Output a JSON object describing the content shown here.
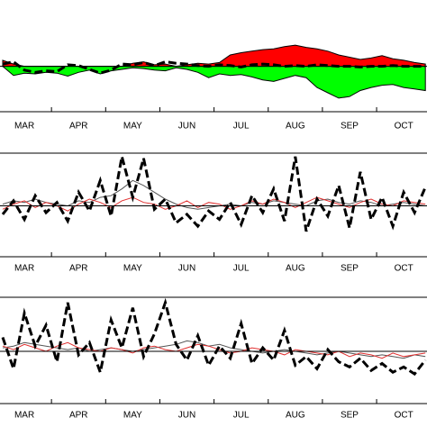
{
  "chart_data": [
    {
      "type": "area",
      "x": [
        2.6,
        2.8,
        3.0,
        3.2,
        3.4,
        3.6,
        3.8,
        4.0,
        4.2,
        4.4,
        4.6,
        4.8,
        5.0,
        5.2,
        5.4,
        5.6,
        5.8,
        6.0,
        6.2,
        6.4,
        6.6,
        6.8,
        7.0,
        7.2,
        7.4,
        7.6,
        7.8,
        8.0,
        8.2,
        8.4,
        8.6,
        8.8,
        9.0,
        9.2,
        9.4,
        9.6,
        9.8,
        10.0,
        10.2,
        10.4
      ],
      "series": [
        {
          "color": "#ff0000",
          "style": "fill",
          "values": [
            0.8,
            0.3,
            0,
            0,
            0,
            0,
            0,
            0,
            0,
            0,
            0,
            0,
            0.4,
            0.6,
            0.2,
            0.3,
            0,
            0.2,
            0.4,
            0.3,
            0.5,
            1.5,
            1.8,
            2.0,
            2.2,
            2.3,
            2.6,
            2.8,
            2.5,
            2.3,
            2.0,
            1.5,
            1.2,
            0.9,
            1.1,
            1.4,
            1.0,
            0.8,
            0.5,
            0.3
          ]
        },
        {
          "color": "#00ff00",
          "style": "fill",
          "values": [
            0,
            -1.2,
            -0.9,
            -1.0,
            -0.8,
            -0.9,
            -1.3,
            -0.8,
            -0.5,
            -1.0,
            -0.6,
            -0.4,
            -0.2,
            -0.3,
            -0.5,
            -0.6,
            -0.2,
            -0.4,
            -0.8,
            -1.5,
            -1.0,
            -1.2,
            -1.1,
            -1.4,
            -1.8,
            -2.0,
            -1.6,
            -1.2,
            -1.5,
            -2.8,
            -3.5,
            -4.2,
            -4.0,
            -3.2,
            -2.8,
            -2.5,
            -2.4,
            -2.8,
            -3.0,
            -3.2
          ]
        },
        {
          "color": "#000000",
          "style": "dashed",
          "values": [
            0.3,
            0.6,
            -0.5,
            -0.8,
            -0.6,
            -0.7,
            0.2,
            0.1,
            -0.4,
            -0.9,
            -0.5,
            0.3,
            0.2,
            0.5,
            0.1,
            0.6,
            0.4,
            0.3,
            0.1,
            0.0,
            0.2,
            0.1,
            -0.1,
            0.2,
            0.3,
            0.2,
            0.0,
            0.1,
            0.0,
            0.2,
            0.1,
            0.0,
            0.0,
            -0.1,
            0.0,
            0.0,
            0.1,
            0.0,
            0.0,
            0.0
          ]
        }
      ],
      "hline": 0,
      "xlim": [
        2.55,
        10.43
      ],
      "ylim": [
        -6,
        4
      ],
      "xticks": [
        {
          "value": 3,
          "label": "MAR"
        },
        {
          "value": 4,
          "label": "APR"
        },
        {
          "value": 5,
          "label": "MAY"
        },
        {
          "value": 6,
          "label": "JUN"
        },
        {
          "value": 7,
          "label": "JUL"
        },
        {
          "value": 8,
          "label": "AUG"
        },
        {
          "value": 9,
          "label": "SEP"
        },
        {
          "value": 10,
          "label": "OCT"
        }
      ],
      "xminorticks": [
        3.5,
        4.5,
        5.5,
        6.5,
        7.5,
        8.5,
        9.5
      ]
    },
    {
      "type": "line",
      "x": [
        2.6,
        2.8,
        3.0,
        3.2,
        3.4,
        3.6,
        3.8,
        4.0,
        4.2,
        4.4,
        4.6,
        4.8,
        5.0,
        5.2,
        5.4,
        5.6,
        5.8,
        6.0,
        6.2,
        6.4,
        6.6,
        6.8,
        7.0,
        7.2,
        7.4,
        7.6,
        7.8,
        8.0,
        8.2,
        8.4,
        8.6,
        8.8,
        9.0,
        9.2,
        9.4,
        9.6,
        9.8,
        10.0,
        10.2,
        10.4
      ],
      "series": [
        {
          "color": "#000000",
          "style": "dashed",
          "values": [
            -0.5,
            0.3,
            -0.8,
            0.6,
            -0.4,
            0.2,
            -0.9,
            0.8,
            -0.3,
            1.5,
            -0.6,
            2.9,
            0.5,
            2.8,
            -0.2,
            0.4,
            -1.0,
            -0.5,
            -1.2,
            -0.3,
            -0.8,
            0.2,
            -1.1,
            0.6,
            -0.4,
            1.0,
            -0.9,
            2.9,
            -1.5,
            0.4,
            -0.6,
            1.2,
            -1.3,
            2.0,
            -0.8,
            0.5,
            -1.2,
            0.8,
            -0.4,
            1.1
          ]
        },
        {
          "color": "#555555",
          "style": "thin",
          "values": [
            0.1,
            0.3,
            0.2,
            0.4,
            0.2,
            0.1,
            0.0,
            0.3,
            0.2,
            0.5,
            0.6,
            1.0,
            1.5,
            1.2,
            0.8,
            0.4,
            0.1,
            -0.1,
            -0.2,
            -0.1,
            0.0,
            0.1,
            0.0,
            0.2,
            0.1,
            0.3,
            0.2,
            0.1,
            0.0,
            0.3,
            0.4,
            0.2,
            0.1,
            0.3,
            0.2,
            0.0,
            0.1,
            0.2,
            0.1,
            0.0
          ]
        },
        {
          "color": "#e03030",
          "style": "thin",
          "values": [
            -0.2,
            0.1,
            0.3,
            -0.1,
            0.2,
            0.0,
            -0.3,
            0.1,
            0.4,
            0.2,
            -0.1,
            0.3,
            0.5,
            0.2,
            0.1,
            -0.2,
            0.0,
            0.3,
            -0.1,
            0.2,
            0.1,
            -0.2,
            0.0,
            0.3,
            0.1,
            0.4,
            0.2,
            -0.1,
            0.2,
            0.5,
            0.3,
            0.1,
            -0.1,
            0.2,
            0.4,
            0.1,
            0.0,
            0.3,
            0.2,
            0.1
          ]
        }
      ],
      "hline": 0,
      "xlim": [
        2.55,
        10.43
      ],
      "ylim": [
        -3,
        3
      ],
      "xticks": [
        {
          "value": 3,
          "label": "MAR"
        },
        {
          "value": 4,
          "label": "APR"
        },
        {
          "value": 5,
          "label": "MAY"
        },
        {
          "value": 6,
          "label": "JUN"
        },
        {
          "value": 7,
          "label": "JUL"
        },
        {
          "value": 8,
          "label": "AUG"
        },
        {
          "value": 9,
          "label": "SEP"
        },
        {
          "value": 10,
          "label": "OCT"
        }
      ],
      "xminorticks": [
        3.5,
        4.5,
        5.5,
        6.5,
        7.5,
        8.5,
        9.5
      ]
    },
    {
      "type": "line",
      "x": [
        2.6,
        2.8,
        3.0,
        3.2,
        3.4,
        3.6,
        3.8,
        4.0,
        4.2,
        4.4,
        4.6,
        4.8,
        5.0,
        5.2,
        5.4,
        5.6,
        5.8,
        6.0,
        6.2,
        6.4,
        6.6,
        6.8,
        7.0,
        7.2,
        7.4,
        7.6,
        7.8,
        8.0,
        8.2,
        8.4,
        8.6,
        8.8,
        9.0,
        9.2,
        9.4,
        9.6,
        9.8,
        10.0,
        10.2,
        10.4
      ],
      "series": [
        {
          "color": "#000000",
          "style": "dashed",
          "values": [
            0.8,
            -1.0,
            2.2,
            0.3,
            1.5,
            -0.6,
            2.8,
            -0.2,
            0.5,
            -1.2,
            1.8,
            0.2,
            2.5,
            -0.3,
            1.0,
            2.8,
            0.4,
            -0.5,
            0.9,
            -0.8,
            0.3,
            -0.4,
            1.6,
            -0.7,
            0.2,
            -0.5,
            1.2,
            -0.8,
            -0.3,
            -1.0,
            0.1,
            -0.6,
            -0.9,
            -0.4,
            -1.1,
            -0.7,
            -1.2,
            -0.9,
            -1.3,
            -0.5
          ]
        },
        {
          "color": "#555555",
          "style": "thin",
          "values": [
            0.2,
            0.3,
            0.5,
            0.4,
            0.3,
            0.2,
            0.1,
            0.2,
            0.0,
            0.1,
            0.2,
            0.1,
            0.0,
            0.1,
            0.2,
            0.3,
            0.4,
            0.6,
            0.5,
            0.3,
            0.4,
            0.2,
            0.1,
            0.0,
            -0.1,
            0.0,
            0.1,
            0.0,
            -0.1,
            -0.2,
            -0.1,
            0.0,
            -0.1,
            -0.2,
            -0.3,
            -0.2,
            -0.3,
            -0.4,
            -0.2,
            -0.3
          ]
        },
        {
          "color": "#e03030",
          "style": "thin",
          "values": [
            0.3,
            0.1,
            0.4,
            0.2,
            0.0,
            0.3,
            0.5,
            0.2,
            0.1,
            0.0,
            0.2,
            0.1,
            -0.1,
            0.2,
            0.3,
            0.1,
            0.0,
            0.2,
            0.4,
            0.3,
            0.1,
            -0.1,
            0.0,
            0.2,
            0.1,
            0.0,
            -0.2,
            0.1,
            0.0,
            -0.1,
            -0.2,
            0.0,
            -0.3,
            -0.1,
            -0.2,
            -0.4,
            -0.1,
            -0.3,
            -0.2,
            -0.1
          ]
        }
      ],
      "hline": 0,
      "xlim": [
        2.55,
        10.43
      ],
      "ylim": [
        -3,
        3
      ],
      "xticks": [
        {
          "value": 3,
          "label": "MAR"
        },
        {
          "value": 4,
          "label": "APR"
        },
        {
          "value": 5,
          "label": "MAY"
        },
        {
          "value": 6,
          "label": "JUN"
        },
        {
          "value": 7,
          "label": "JUL"
        },
        {
          "value": 8,
          "label": "AUG"
        },
        {
          "value": 9,
          "label": "SEP"
        },
        {
          "value": 10,
          "label": "OCT"
        }
      ],
      "xminorticks": [
        3.5,
        4.5,
        5.5,
        6.5,
        7.5,
        8.5,
        9.5
      ]
    }
  ]
}
